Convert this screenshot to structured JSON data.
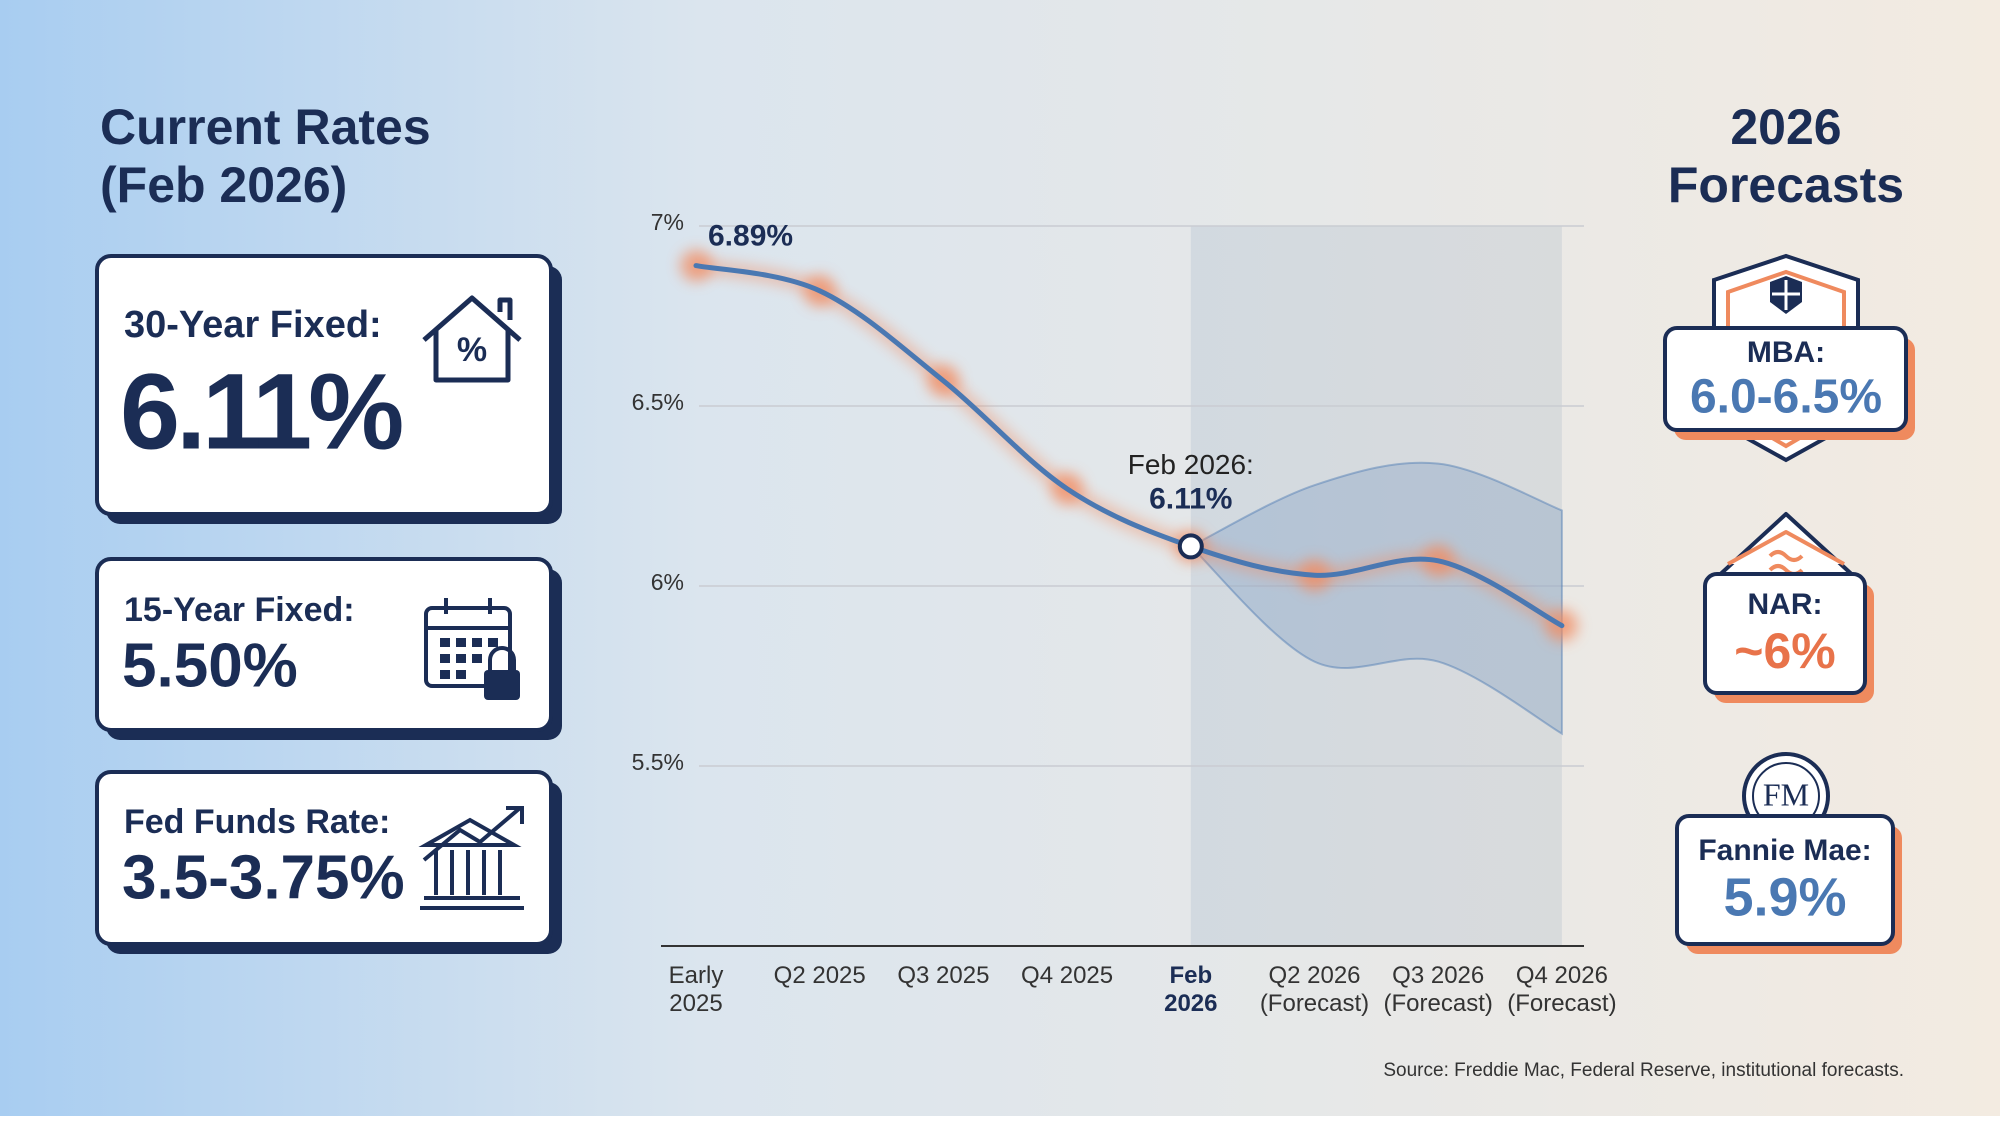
{
  "left_panel": {
    "title": [
      "Current Rates",
      "(Feb 2026)"
    ],
    "cards": [
      {
        "label": "30-Year Fixed:",
        "value": "6.11%"
      },
      {
        "label": "15-Year Fixed:",
        "value": "5.50%"
      },
      {
        "label": "Fed Funds Rate:",
        "value": "3.5-3.75%"
      }
    ]
  },
  "right_panel": {
    "title": [
      "2026",
      "Forecasts"
    ],
    "cards": [
      {
        "label": "MBA:",
        "value": "6.0-6.5%"
      },
      {
        "label": "NAR:",
        "value": "~6%"
      },
      {
        "label": "Fannie Mae:",
        "value": "5.9%",
        "logo": "FM"
      }
    ]
  },
  "chart_data": {
    "type": "line",
    "categories": [
      "Early\n2025",
      "Q2 2025",
      "Q3 2025",
      "Q4 2025",
      "Feb\n2026",
      "Q2 2026\n(Forecast)",
      "Q3 2026\n(Forecast)",
      "Q4 2026\n(Forecast)"
    ],
    "values": [
      6.89,
      6.82,
      6.57,
      6.27,
      6.11,
      6.03,
      6.07,
      5.89
    ],
    "value_labels": [
      "6.89%",
      null,
      null,
      null,
      "6.11%",
      null,
      null,
      null
    ],
    "annotation": "Feb 2026:",
    "highlight": 4,
    "band": {
      "upper": [
        null,
        null,
        null,
        null,
        6.11,
        6.28,
        6.34,
        6.21
      ],
      "lower": [
        null,
        null,
        null,
        null,
        6.11,
        5.79,
        5.79,
        5.59
      ]
    },
    "color": "#4a78b2",
    "glow_color": "#f28a5f",
    "ylim": [
      5,
      7
    ],
    "yticks": [
      {
        "value": 5.5,
        "label": "5.5%"
      },
      {
        "value": 6,
        "label": "6%"
      },
      {
        "value": 6.5,
        "label": "6.5%"
      },
      {
        "value": 7,
        "label": "7%"
      }
    ],
    "grid": true
  },
  "source": "Source: Freddie Mac, Federal Reserve, institutional forecasts."
}
